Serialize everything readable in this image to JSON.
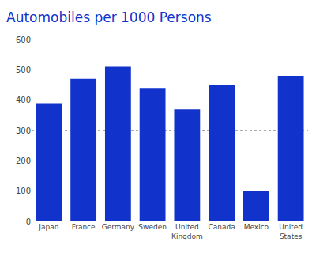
{
  "chart_data": {
    "type": "bar",
    "title": "Automobiles per 1000 Persons",
    "categories": [
      "Japan",
      "France",
      "Germany",
      "Sweden",
      "United\nKingdom",
      "Canada",
      "Mexico",
      "United\nStates"
    ],
    "values": [
      390,
      470,
      510,
      440,
      370,
      450,
      100,
      480
    ],
    "color": "#1133cc",
    "ylim": [
      0,
      600
    ],
    "yticks": [
      0,
      100,
      200,
      300,
      400,
      500,
      600
    ],
    "grid": true
  }
}
